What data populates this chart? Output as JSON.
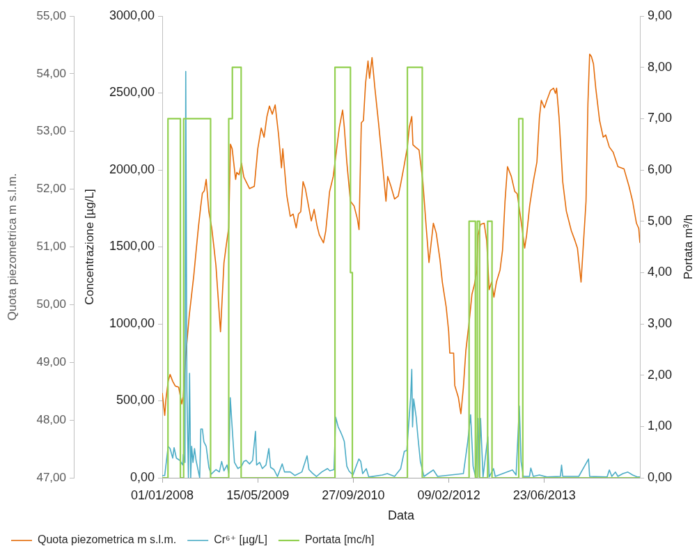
{
  "chart_data": {
    "type": "line",
    "xlabel": "Data",
    "ylabel": "Concentrazione [µg/L]",
    "y2label": "Portata m³/h",
    "y3label": "Quota piezometrica m s.l.m.",
    "xlim": [
      "2008-01-01",
      "2014-11-05"
    ],
    "xticks": [
      {
        "value": "2008-01-01",
        "label": "01/01/2008"
      },
      {
        "value": "2009-05-15",
        "label": "15/05/2009"
      },
      {
        "value": "2010-09-27",
        "label": "27/09/2010"
      },
      {
        "value": "2012-02-09",
        "label": "09/02/2012"
      },
      {
        "value": "2013-06-23",
        "label": "23/06/2013"
      }
    ],
    "ylim": [
      0,
      3000
    ],
    "yticks": [
      {
        "value": 0,
        "label": "0,00"
      },
      {
        "value": 500,
        "label": "500,00"
      },
      {
        "value": 1000,
        "label": "1000,00"
      },
      {
        "value": 1500,
        "label": "1500,00"
      },
      {
        "value": 2000,
        "label": "2000,00"
      },
      {
        "value": 2500,
        "label": "2500,00"
      },
      {
        "value": 3000,
        "label": "3000,00"
      }
    ],
    "y2lim": [
      0,
      9
    ],
    "y2ticks": [
      {
        "value": 0,
        "label": "0,00"
      },
      {
        "value": 1,
        "label": "1,00"
      },
      {
        "value": 2,
        "label": "2,00"
      },
      {
        "value": 3,
        "label": "3,00"
      },
      {
        "value": 4,
        "label": "4,00"
      },
      {
        "value": 5,
        "label": "5,00"
      },
      {
        "value": 6,
        "label": "6,00"
      },
      {
        "value": 7,
        "label": "7,00"
      },
      {
        "value": 8,
        "label": "8,00"
      },
      {
        "value": 9,
        "label": "9,00"
      }
    ],
    "y3lim": [
      47,
      55
    ],
    "y3ticks": [
      {
        "value": 47,
        "label": "47,00"
      },
      {
        "value": 48,
        "label": "48,00"
      },
      {
        "value": 49,
        "label": "49,00"
      },
      {
        "value": 50,
        "label": "50,00"
      },
      {
        "value": 51,
        "label": "51,00"
      },
      {
        "value": 52,
        "label": "52,00"
      },
      {
        "value": 53,
        "label": "53,00"
      },
      {
        "value": 54,
        "label": "54,00"
      },
      {
        "value": 55,
        "label": "55,00"
      }
    ],
    "grid": false,
    "legend": "bottom",
    "marker": "none",
    "series": [
      {
        "name": "Quota piezometrica m s.l.m.",
        "type": "line",
        "axis": "y3",
        "color": "#e46c0a",
        "x": [
          "2008-01-01",
          "2008-01-14",
          "2008-01-20",
          "2008-02-01",
          "2008-02-11",
          "2008-02-25",
          "2008-03-09",
          "2008-03-27",
          "2008-04-12",
          "2008-04-20",
          "2008-05-03",
          "2008-05-21",
          "2008-06-14",
          "2008-06-26",
          "2008-07-08",
          "2008-07-20",
          "2008-07-29",
          "2008-08-08",
          "2008-08-18",
          "2008-09-01",
          "2008-09-16",
          "2008-09-26",
          "2008-10-08",
          "2008-11-01",
          "2008-11-19",
          "2008-12-02",
          "2008-12-14",
          "2008-12-23",
          "2009-01-01",
          "2009-01-19",
          "2009-01-25",
          "2009-02-06",
          "2009-02-19",
          "2009-03-03",
          "2009-03-15",
          "2009-04-02",
          "2009-04-27",
          "2009-05-15",
          "2009-06-02",
          "2009-06-17",
          "2009-07-02",
          "2009-07-15",
          "2009-07-30",
          "2009-08-14",
          "2009-09-01",
          "2009-09-16",
          "2009-09-23",
          "2009-10-14",
          "2009-11-01",
          "2009-11-16",
          "2009-12-02",
          "2009-12-14",
          "2009-12-26",
          "2010-01-07",
          "2010-01-19",
          "2010-02-19",
          "2010-03-06",
          "2010-03-21",
          "2010-04-02",
          "2010-04-24",
          "2010-05-06",
          "2010-05-26",
          "2010-06-14",
          "2010-07-03",
          "2010-07-16",
          "2010-08-02",
          "2010-08-11",
          "2010-08-24",
          "2010-09-12",
          "2010-10-01",
          "2010-10-18",
          "2010-10-27",
          "2010-11-08",
          "2010-11-19",
          "2010-11-30",
          "2010-12-13",
          "2010-12-21",
          "2011-01-03",
          "2011-01-18",
          "2011-02-06",
          "2011-02-26",
          "2011-03-17",
          "2011-03-26",
          "2011-04-12",
          "2011-05-01",
          "2011-05-20",
          "2011-06-02",
          "2011-06-19",
          "2011-07-07",
          "2011-07-17",
          "2011-07-30",
          "2011-08-05",
          "2011-08-18",
          "2011-09-06",
          "2011-09-26",
          "2011-10-15",
          "2011-10-28",
          "2011-11-10",
          "2011-11-20",
          "2011-12-05",
          "2011-12-25",
          "2012-01-06",
          "2012-01-26",
          "2012-02-08",
          "2012-02-14",
          "2012-03-05",
          "2012-03-11",
          "2012-03-30",
          "2012-04-12",
          "2012-04-25",
          "2012-05-08",
          "2012-05-27",
          "2012-06-09",
          "2012-06-22",
          "2012-07-05",
          "2012-07-11",
          "2012-07-24",
          "2012-08-12",
          "2012-08-25",
          "2012-09-07",
          "2012-09-20",
          "2012-10-02",
          "2012-10-15",
          "2012-11-03",
          "2012-11-16",
          "2012-11-29",
          "2012-12-12",
          "2013-01-01",
          "2013-01-19",
          "2013-02-01",
          "2013-02-21",
          "2013-03-12",
          "2013-03-22",
          "2013-04-07",
          "2013-04-26",
          "2013-05-15",
          "2013-05-28",
          "2013-06-07",
          "2013-06-23",
          "2013-07-06",
          "2013-07-25",
          "2013-08-10",
          "2013-08-20",
          "2013-08-26",
          "2013-09-08",
          "2013-09-27",
          "2013-10-16",
          "2013-11-11",
          "2013-11-30",
          "2013-12-13",
          "2014-01-01",
          "2014-01-27",
          "2014-02-06",
          "2014-02-15",
          "2014-02-24",
          "2014-03-07",
          "2014-03-19",
          "2014-04-08",
          "2014-04-27",
          "2014-05-10",
          "2014-05-29",
          "2014-06-18",
          "2014-07-13",
          "2014-08-14",
          "2014-09-09",
          "2014-09-28",
          "2014-10-18",
          "2014-10-30",
          "2014-11-05"
        ],
        "values": [
          48.47,
          48.08,
          48.35,
          48.67,
          48.79,
          48.67,
          48.59,
          48.57,
          48.28,
          48.41,
          49.11,
          49.8,
          50.5,
          50.92,
          51.33,
          51.69,
          51.93,
          51.97,
          52.17,
          51.61,
          51.33,
          51.04,
          50.68,
          49.53,
          50.72,
          51.05,
          51.33,
          52.78,
          52.7,
          52.17,
          52.29,
          52.25,
          52.45,
          52.21,
          52.13,
          52.01,
          52.05,
          52.7,
          53.06,
          52.9,
          53.26,
          53.44,
          53.3,
          53.46,
          52.94,
          52.37,
          52.7,
          51.89,
          51.53,
          51.57,
          51.33,
          51.57,
          51.61,
          52.13,
          52.01,
          51.45,
          51.65,
          51.37,
          51.21,
          51.07,
          51.28,
          51.96,
          52.22,
          52.73,
          53.07,
          53.37,
          53.07,
          52.47,
          51.79,
          51.71,
          51.49,
          51.3,
          53.15,
          53.19,
          53.83,
          54.22,
          53.92,
          54.28,
          53.75,
          53.15,
          52.47,
          51.79,
          52.22,
          52.05,
          51.83,
          51.88,
          52.09,
          52.39,
          52.73,
          53.07,
          53.26,
          52.77,
          52.73,
          52.68,
          52.13,
          51.28,
          50.73,
          51.11,
          51.41,
          51.24,
          50.77,
          50.39,
          49.96,
          49.54,
          49.16,
          49.16,
          48.6,
          48.39,
          48.11,
          48.56,
          49.2,
          49.75,
          50.18,
          50.35,
          50.6,
          51.2,
          51.39,
          51.41,
          51.11,
          50.26,
          50.39,
          50.13,
          50.39,
          50.6,
          50.94,
          51.79,
          52.39,
          52.22,
          51.96,
          51.92,
          51.45,
          50.98,
          51.2,
          51.71,
          52.13,
          52.47,
          53.24,
          53.54,
          53.41,
          53.54,
          53.71,
          53.75,
          53.66,
          53.75,
          53.24,
          52.13,
          51.62,
          51.28,
          51.11,
          50.98,
          50.39,
          51.79,
          53.49,
          54.34,
          54.3,
          54.17,
          53.75,
          53.19,
          52.9,
          52.94,
          52.73,
          52.64,
          52.39,
          52.35,
          52.05,
          51.79,
          51.41,
          51.32,
          51.07
        ]
      },
      {
        "name": "Cr⁶⁺ [µg/L]",
        "type": "line",
        "color": "#4bacc6",
        "x": [
          "2008-01-01",
          "2008-01-14",
          "2008-02-01",
          "2008-02-11",
          "2008-02-25",
          "2008-03-03",
          "2008-03-15",
          "2008-04-02",
          "2008-04-17",
          "2008-04-20",
          "2008-04-29",
          "2008-05-03",
          "2008-05-09",
          "2008-05-17",
          "2008-05-23",
          "2008-05-29",
          "2008-06-03",
          "2008-06-10",
          "2008-06-18",
          "2008-06-26",
          "2008-07-15",
          "2008-07-21",
          "2008-07-29",
          "2008-08-06",
          "2008-08-18",
          "2008-09-01",
          "2008-09-13",
          "2008-10-08",
          "2008-10-26",
          "2008-11-07",
          "2008-11-19",
          "2008-12-05",
          "2008-12-14",
          "2008-12-22",
          "2009-01-01",
          "2009-01-13",
          "2009-01-31",
          "2009-02-19",
          "2009-03-03",
          "2009-03-15",
          "2009-04-02",
          "2009-04-18",
          "2009-05-03",
          "2009-05-09",
          "2009-05-25",
          "2009-06-08",
          "2009-06-27",
          "2009-07-12",
          "2009-07-21",
          "2009-08-08",
          "2009-08-26",
          "2009-09-20",
          "2009-10-02",
          "2009-11-01",
          "2009-11-25",
          "2010-01-01",
          "2010-01-28",
          "2010-02-07",
          "2010-02-25",
          "2010-03-18",
          "2010-04-15",
          "2010-05-15",
          "2010-05-27",
          "2010-06-18",
          "2010-06-27",
          "2010-07-10",
          "2010-07-22",
          "2010-08-02",
          "2010-08-11",
          "2010-08-24",
          "2010-09-05",
          "2010-09-25",
          "2010-10-07",
          "2010-10-26",
          "2010-11-05",
          "2010-11-15",
          "2010-12-04",
          "2010-12-17",
          "2011-02-26",
          "2011-03-24",
          "2011-05-01",
          "2011-06-02",
          "2011-06-21",
          "2011-07-04",
          "2011-07-24",
          "2011-07-30",
          "2011-08-03",
          "2011-08-09",
          "2011-08-22",
          "2011-08-31",
          "2011-09-13",
          "2011-10-02",
          "2011-11-20",
          "2011-12-12",
          "2012-04-25",
          "2012-05-18",
          "2012-06-02",
          "2012-06-15",
          "2012-06-28",
          "2012-07-11",
          "2012-07-17",
          "2012-07-24",
          "2012-08-06",
          "2012-08-31",
          "2012-09-07",
          "2012-09-30",
          "2012-10-09",
          "2013-01-07",
          "2013-01-26",
          "2013-02-12",
          "2013-02-21",
          "2013-03-05",
          "2013-04-06",
          "2013-04-13",
          "2013-04-26",
          "2013-05-28",
          "2013-07-06",
          "2013-09-15",
          "2013-09-21",
          "2013-09-27",
          "2013-12-20",
          "2014-02-09",
          "2014-02-15",
          "2014-05-17",
          "2014-05-29",
          "2014-06-11",
          "2014-06-30",
          "2014-07-13",
          "2014-08-08",
          "2014-09-03",
          "2014-09-28",
          "2014-10-24",
          "2014-11-05"
        ],
        "values": [
          15,
          15,
          204,
          190,
          128,
          196,
          128,
          113,
          83,
          151,
          100,
          2640,
          566,
          0,
          679,
          0,
          204,
          100,
          190,
          113,
          0,
          317,
          317,
          234,
          204,
          68,
          23,
          53,
          38,
          106,
          45,
          83,
          30,
          520,
          326,
          100,
          60,
          75,
          106,
          113,
          90,
          113,
          302,
          83,
          100,
          60,
          83,
          190,
          68,
          53,
          8,
          90,
          38,
          38,
          15,
          38,
          143,
          53,
          30,
          8,
          38,
          60,
          45,
          53,
          393,
          330,
          299,
          267,
          235,
          75,
          43,
          18,
          59,
          122,
          106,
          27,
          59,
          5,
          18,
          27,
          9,
          59,
          172,
          178,
          520,
          704,
          330,
          512,
          394,
          267,
          106,
          9,
          51,
          9,
          27,
          235,
          409,
          75,
          5,
          385,
          5,
          385,
          5,
          267,
          5,
          59,
          9,
          51,
          18,
          466,
          106,
          9,
          9,
          63,
          9,
          18,
          5,
          9,
          82,
          9,
          9,
          122,
          9,
          5,
          51,
          9,
          37,
          9,
          27,
          37,
          18,
          5,
          5
        ]
      },
      {
        "name": "Portata [mc/h]",
        "type": "step",
        "axis": "y2",
        "color": "#92d050",
        "x": [
          "2008-01-01",
          "2008-01-31",
          "2008-04-05",
          "2008-04-22",
          "2008-09-10",
          "2008-12-14",
          "2009-01-02",
          "2009-02-17",
          "2010-06-23",
          "2010-09-12",
          "2010-09-22",
          "2011-07-07",
          "2011-09-23",
          "2012-05-25",
          "2012-06-27",
          "2012-07-07",
          "2012-07-19",
          "2012-08-30",
          "2012-09-22",
          "2013-02-09",
          "2013-03-02",
          "2014-11-05"
        ],
        "values": [
          0,
          7,
          0,
          7,
          0,
          7,
          8,
          0,
          8,
          4,
          0,
          8,
          0,
          5,
          0,
          5,
          0,
          5,
          0,
          7,
          0,
          0
        ]
      }
    ]
  }
}
